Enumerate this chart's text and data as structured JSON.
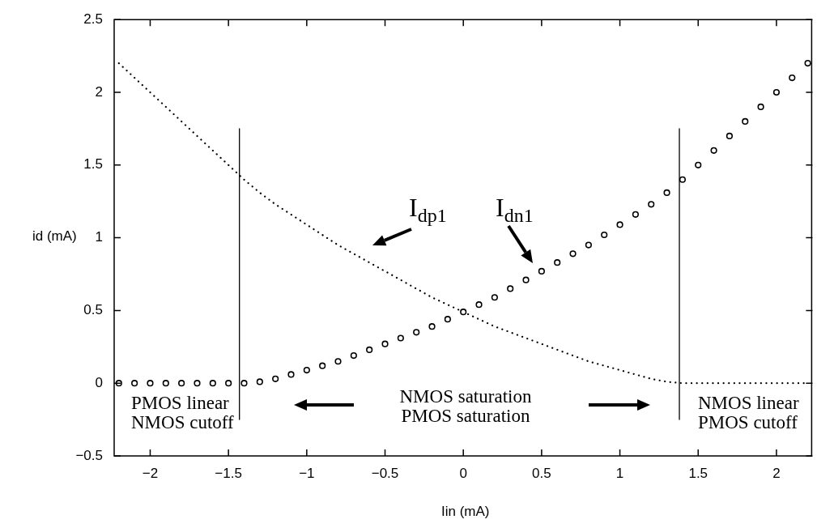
{
  "chart_data": {
    "type": "line",
    "xlabel": "Iin (mA)",
    "ylabel": "id (mA)",
    "xlim": [
      -2.23,
      2.23
    ],
    "ylim": [
      -0.5,
      2.5
    ],
    "xticks": [
      {
        "value": -2,
        "label": "−2"
      },
      {
        "value": -1.5,
        "label": "−1.5"
      },
      {
        "value": -1,
        "label": "−1"
      },
      {
        "value": -0.5,
        "label": "−0.5"
      },
      0,
      0.5,
      1,
      1.5,
      2
    ],
    "yticks": [
      {
        "value": -0.5,
        "label": "−0.5"
      },
      0,
      0.5,
      1,
      1.5,
      2,
      2.5
    ],
    "series": [
      {
        "name": "I$_{dn1}$",
        "type": "scatter",
        "marker": "circle",
        "color": "#000000",
        "x": [
          -2.2,
          -2.1,
          -2.0,
          -1.9,
          -1.8,
          -1.7,
          -1.6,
          -1.5,
          -1.4,
          -1.3,
          -1.2,
          -1.1,
          -1.0,
          -0.9,
          -0.8,
          -0.7,
          -0.6,
          -0.5,
          -0.4,
          -0.3,
          -0.2,
          -0.1,
          0,
          0.1,
          0.2,
          0.3,
          0.4,
          0.5,
          0.6,
          0.7,
          0.8,
          0.9,
          1.0,
          1.1,
          1.2,
          1.3,
          1.4,
          1.5,
          1.6,
          1.7,
          1.8,
          1.9,
          2.0,
          2.1,
          2.2
        ],
        "values": [
          0,
          0,
          0,
          0,
          0,
          0,
          0,
          0,
          0,
          0.01,
          0.03,
          0.06,
          0.09,
          0.12,
          0.15,
          0.19,
          0.23,
          0.27,
          0.31,
          0.35,
          0.39,
          0.44,
          0.49,
          0.54,
          0.59,
          0.65,
          0.71,
          0.77,
          0.83,
          0.89,
          0.95,
          1.02,
          1.09,
          1.16,
          1.23,
          1.31,
          1.4,
          1.5,
          1.6,
          1.7,
          1.8,
          1.9,
          2.0,
          2.1,
          2.2
        ]
      },
      {
        "name": "I$_{dp1}$",
        "marker": "none",
        "line_style": "dotted",
        "color": "#000000",
        "x": [
          -2.2,
          -2.1,
          -2.0,
          -1.9,
          -1.8,
          -1.7,
          -1.6,
          -1.5,
          -1.4,
          -1.3,
          -1.2,
          -1.1,
          -1.0,
          -0.9,
          -0.8,
          -0.7,
          -0.6,
          -0.5,
          -0.4,
          -0.3,
          -0.2,
          -0.1,
          0,
          0.1,
          0.2,
          0.3,
          0.4,
          0.5,
          0.6,
          0.7,
          0.8,
          0.9,
          1.0,
          1.1,
          1.2,
          1.3,
          1.4,
          1.5,
          1.6,
          1.7,
          1.8,
          1.9,
          2.0,
          2.1,
          2.2
        ],
        "values": [
          2.2,
          2.1,
          2.0,
          1.9,
          1.8,
          1.7,
          1.6,
          1.5,
          1.4,
          1.31,
          1.23,
          1.16,
          1.09,
          1.02,
          0.95,
          0.89,
          0.83,
          0.77,
          0.71,
          0.65,
          0.59,
          0.54,
          0.49,
          0.44,
          0.39,
          0.35,
          0.31,
          0.27,
          0.23,
          0.19,
          0.15,
          0.12,
          0.09,
          0.06,
          0.03,
          0.01,
          0,
          0,
          0,
          0,
          0,
          0,
          0,
          0,
          0
        ]
      },
      {
        "marker": "none",
        "line_style": "solid",
        "color": "#000000",
        "x": [
          -1.43,
          -1.43
        ],
        "values": [
          -0.25,
          1.75
        ]
      },
      {
        "marker": "none",
        "line_style": "solid",
        "color": "#000000",
        "x": [
          1.38,
          1.38
        ],
        "values": [
          -0.25,
          1.75
        ]
      }
    ],
    "annotations": [
      "PMOS linear\nNMOS cutoff",
      "NMOS saturation\nPMOS saturation",
      "NMOS linear\nPMOS cutoff"
    ]
  }
}
